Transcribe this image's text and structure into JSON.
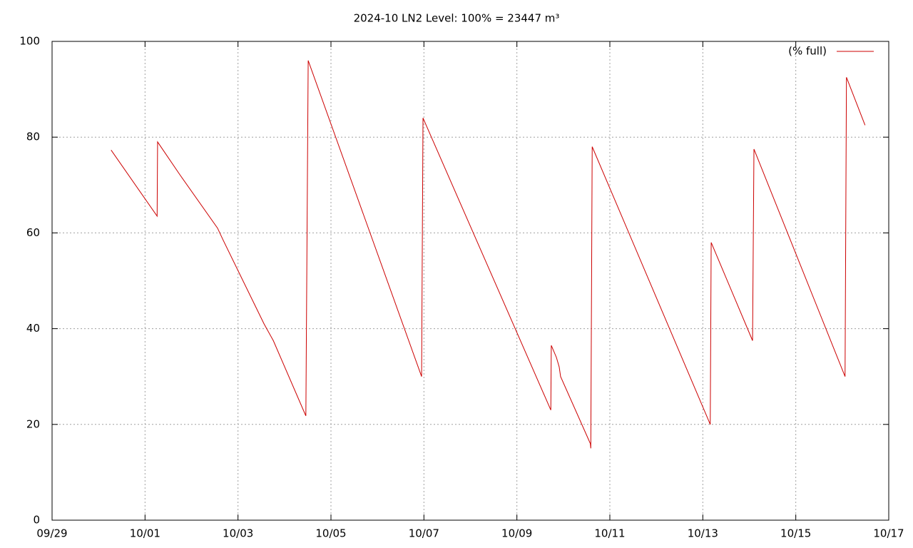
{
  "chart_data": {
    "type": "line",
    "title": "2024-10 LN2 Level: 100% = 23447 m³",
    "x": [
      1.27,
      2.26,
      2.27,
      2.76,
      3.56,
      3.68,
      4.56,
      4.76,
      5.45,
      5.46,
      5.51,
      7.95,
      7.98,
      10.73,
      10.74,
      10.85,
      10.91,
      10.94,
      11.58,
      11.59,
      11.62,
      14.16,
      14.18,
      15.07,
      15.1,
      17.06,
      17.09,
      17.49
    ],
    "series": [
      {
        "name": "(% full)",
        "color": "#cc0000",
        "values": [
          77.3,
          63.5,
          79,
          72,
          61,
          58.5,
          41,
          37.5,
          22,
          21.8,
          96,
          30,
          84,
          23,
          36.5,
          34,
          32,
          30,
          16,
          15,
          78,
          20,
          58,
          37.5,
          77.5,
          30,
          92.5,
          82.5
        ]
      }
    ],
    "xlim": [
      0,
      18
    ],
    "xticks": [
      {
        "value": 0,
        "label": "09/29"
      },
      {
        "value": 2,
        "label": "10/01"
      },
      {
        "value": 4,
        "label": "10/03"
      },
      {
        "value": 6,
        "label": "10/05"
      },
      {
        "value": 8,
        "label": "10/07"
      },
      {
        "value": 10,
        "label": "10/09"
      },
      {
        "value": 12,
        "label": "10/11"
      },
      {
        "value": 14,
        "label": "10/13"
      },
      {
        "value": 16,
        "label": "10/15"
      },
      {
        "value": 18,
        "label": "10/17"
      }
    ],
    "ylim": [
      0,
      100
    ],
    "yticks": [
      0,
      20,
      40,
      60,
      80,
      100
    ],
    "grid": true,
    "legend": "top-right"
  }
}
